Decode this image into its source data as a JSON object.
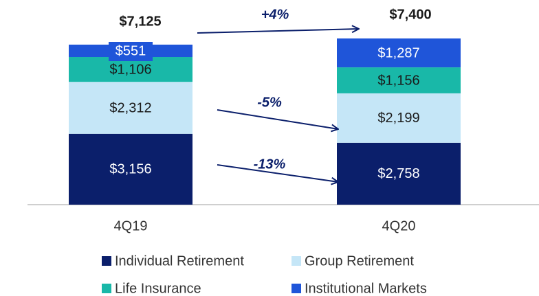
{
  "chart_data": {
    "type": "stacked_bar",
    "categories": [
      "4Q19",
      "4Q20"
    ],
    "series": [
      {
        "name": "Individual Retirement",
        "color": "#0b1f6b",
        "values": [
          3156,
          2758
        ],
        "value_labels": [
          "$3,156",
          "$2,758"
        ]
      },
      {
        "name": "Group Retirement",
        "color": "#c5e6f7",
        "values": [
          2312,
          2199
        ],
        "value_labels": [
          "$2,312",
          "$2,199"
        ]
      },
      {
        "name": "Life Insurance",
        "color": "#19b8a8",
        "values": [
          1106,
          1156
        ],
        "value_labels": [
          "$1,106",
          "$1,156"
        ]
      },
      {
        "name": "Institutional Markets",
        "color": "#1f55d9",
        "values": [
          551,
          1287
        ],
        "value_labels": [
          "$551",
          "$1,287"
        ]
      }
    ],
    "totals": [
      7125,
      7400
    ],
    "total_labels": [
      "$7,125",
      "$7,400"
    ],
    "annotations": [
      "+4%",
      "-5%",
      "-13%"
    ]
  }
}
